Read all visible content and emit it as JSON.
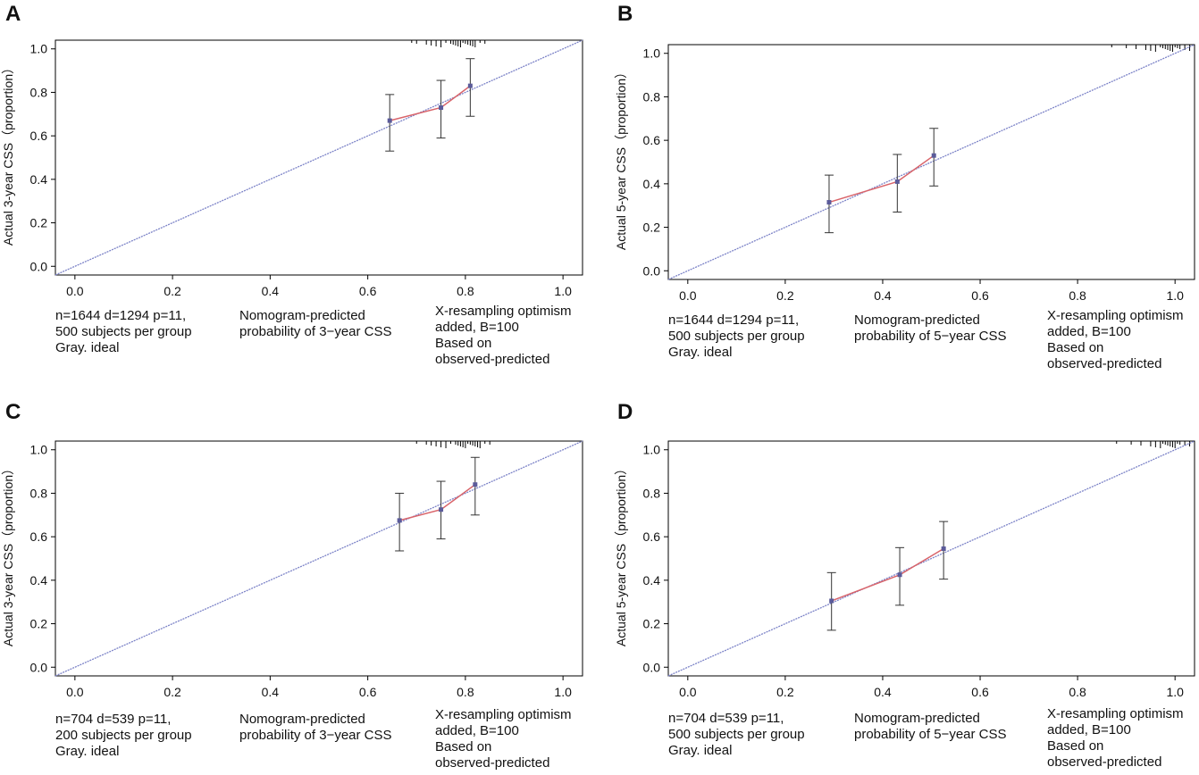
{
  "colors": {
    "ideal": "#7b82c7",
    "apparent": "#d9646a",
    "point": "#5b5b9a",
    "errorbar": "#333333",
    "axis": "#000000"
  },
  "chart_data": [
    {
      "panel": "A",
      "type": "line",
      "xlabel": "Nomogram-predicted probability of 3-year CSS",
      "ylabel": "Actual 3-year CSS（proportion）",
      "xlim": [
        -0.04,
        1.04
      ],
      "ylim": [
        -0.04,
        1.04
      ],
      "xticks": [
        "0.0",
        "0.2",
        "0.4",
        "0.6",
        "0.8",
        "1.0"
      ],
      "yticks": [
        "0.0",
        "0.2",
        "0.4",
        "0.6",
        "0.8",
        "1.0"
      ],
      "series": [
        {
          "name": "Gray. ideal",
          "x": [
            -0.04,
            1.04
          ],
          "y": [
            -0.04,
            1.04
          ]
        },
        {
          "name": "observed",
          "x": [
            0.645,
            0.75,
            0.81
          ],
          "y": [
            0.67,
            0.73,
            0.83
          ],
          "ci_low": [
            0.53,
            0.59,
            0.69
          ],
          "ci_high": [
            0.79,
            0.855,
            0.955
          ]
        }
      ],
      "rug": [
        0.69,
        0.7,
        0.72,
        0.73,
        0.74,
        0.75,
        0.76,
        0.77,
        0.775,
        0.78,
        0.785,
        0.79,
        0.795,
        0.8,
        0.805,
        0.81,
        0.815,
        0.82,
        0.83,
        0.84
      ],
      "annotations": {
        "left": [
          "n=1644 d=1294 p=11,",
          "500 subjects per group",
          "Gray. ideal"
        ],
        "center": [
          "Nomogram-predicted",
          "probability of 3−year CSS"
        ],
        "right": [
          "X-resampling optimism",
          "added, B=100",
          "Based on",
          "observed-predicted"
        ]
      }
    },
    {
      "panel": "B",
      "type": "line",
      "xlabel": "Nomogram-predicted probability of 5-year CSS",
      "ylabel": "Actual 5-year CSS（proportion）",
      "xlim": [
        -0.04,
        1.04
      ],
      "ylim": [
        -0.04,
        1.04
      ],
      "xticks": [
        "0.0",
        "0.2",
        "0.4",
        "0.6",
        "0.8",
        "1.0"
      ],
      "yticks": [
        "0.0",
        "0.2",
        "0.4",
        "0.6",
        "0.8",
        "1.0"
      ],
      "series": [
        {
          "name": "Gray. ideal",
          "x": [
            -0.04,
            1.04
          ],
          "y": [
            -0.04,
            1.04
          ]
        },
        {
          "name": "observed",
          "x": [
            0.29,
            0.43,
            0.505
          ],
          "y": [
            0.315,
            0.41,
            0.53
          ],
          "ci_low": [
            0.175,
            0.27,
            0.39
          ],
          "ci_high": [
            0.44,
            0.535,
            0.655
          ]
        }
      ],
      "rug": [
        0.87,
        0.9,
        0.92,
        0.94,
        0.95,
        0.96,
        0.97,
        0.975,
        0.98,
        0.985,
        0.99,
        0.995,
        1.0,
        1.005,
        1.01,
        1.02,
        1.03
      ],
      "annotations": {
        "left": [
          "n=1644 d=1294 p=11,",
          "500 subjects per group",
          "Gray. ideal"
        ],
        "center": [
          "Nomogram-predicted",
          "probability of 5−year CSS"
        ],
        "right": [
          "X-resampling optimism",
          "added, B=100",
          "Based on",
          "observed-predicted"
        ]
      }
    },
    {
      "panel": "C",
      "type": "line",
      "xlabel": "Nomogram-predicted probability of 3-year CSS",
      "ylabel": "Actual 3-year CSS（proportion）",
      "xlim": [
        -0.04,
        1.04
      ],
      "ylim": [
        -0.04,
        1.04
      ],
      "xticks": [
        "0.0",
        "0.2",
        "0.4",
        "0.6",
        "0.8",
        "1.0"
      ],
      "yticks": [
        "0.0",
        "0.2",
        "0.4",
        "0.6",
        "0.8",
        "1.0"
      ],
      "series": [
        {
          "name": "Gray. ideal",
          "x": [
            -0.04,
            1.04
          ],
          "y": [
            -0.04,
            1.04
          ]
        },
        {
          "name": "observed",
          "x": [
            0.665,
            0.75,
            0.82
          ],
          "y": [
            0.675,
            0.725,
            0.84
          ],
          "ci_low": [
            0.535,
            0.59,
            0.7
          ],
          "ci_high": [
            0.8,
            0.855,
            0.965
          ]
        }
      ],
      "rug": [
        0.7,
        0.72,
        0.73,
        0.74,
        0.75,
        0.76,
        0.77,
        0.78,
        0.785,
        0.79,
        0.795,
        0.8,
        0.805,
        0.81,
        0.815,
        0.82,
        0.825,
        0.83,
        0.84,
        0.85
      ],
      "annotations": {
        "left": [
          "n=704 d=539 p=11,",
          "200 subjects per group",
          "Gray. ideal"
        ],
        "center": [
          "Nomogram-predicted",
          "probability of 3−year CSS"
        ],
        "right": [
          "X-resampling optimism",
          "added, B=100",
          "Based on",
          "observed-predicted"
        ]
      }
    },
    {
      "panel": "D",
      "type": "line",
      "xlabel": "Nomogram-predicted probability of 5-year CSS",
      "ylabel": "Actual 5-year CSS（proportion）",
      "xlim": [
        -0.04,
        1.04
      ],
      "ylim": [
        -0.04,
        1.04
      ],
      "xticks": [
        "0.0",
        "0.2",
        "0.4",
        "0.6",
        "0.8",
        "1.0"
      ],
      "yticks": [
        "0.0",
        "0.2",
        "0.4",
        "0.6",
        "0.8",
        "1.0"
      ],
      "series": [
        {
          "name": "Gray. ideal",
          "x": [
            -0.04,
            1.04
          ],
          "y": [
            -0.04,
            1.04
          ]
        },
        {
          "name": "observed",
          "x": [
            0.295,
            0.435,
            0.525
          ],
          "y": [
            0.305,
            0.425,
            0.545
          ],
          "ci_low": [
            0.17,
            0.285,
            0.405
          ],
          "ci_high": [
            0.435,
            0.55,
            0.67
          ]
        }
      ],
      "rug": [
        0.88,
        0.91,
        0.93,
        0.95,
        0.96,
        0.97,
        0.975,
        0.98,
        0.985,
        0.99,
        0.995,
        1.0,
        1.005,
        1.01,
        1.02,
        1.03
      ],
      "annotations": {
        "left": [
          "n=704 d=539 p=11,",
          "500 subjects per group",
          "Gray. ideal"
        ],
        "center": [
          "Nomogram-predicted",
          "probability of 5−year CSS"
        ],
        "right": [
          "X-resampling optimism",
          "added, B=100",
          "Based on",
          "observed-predicted"
        ]
      }
    }
  ]
}
